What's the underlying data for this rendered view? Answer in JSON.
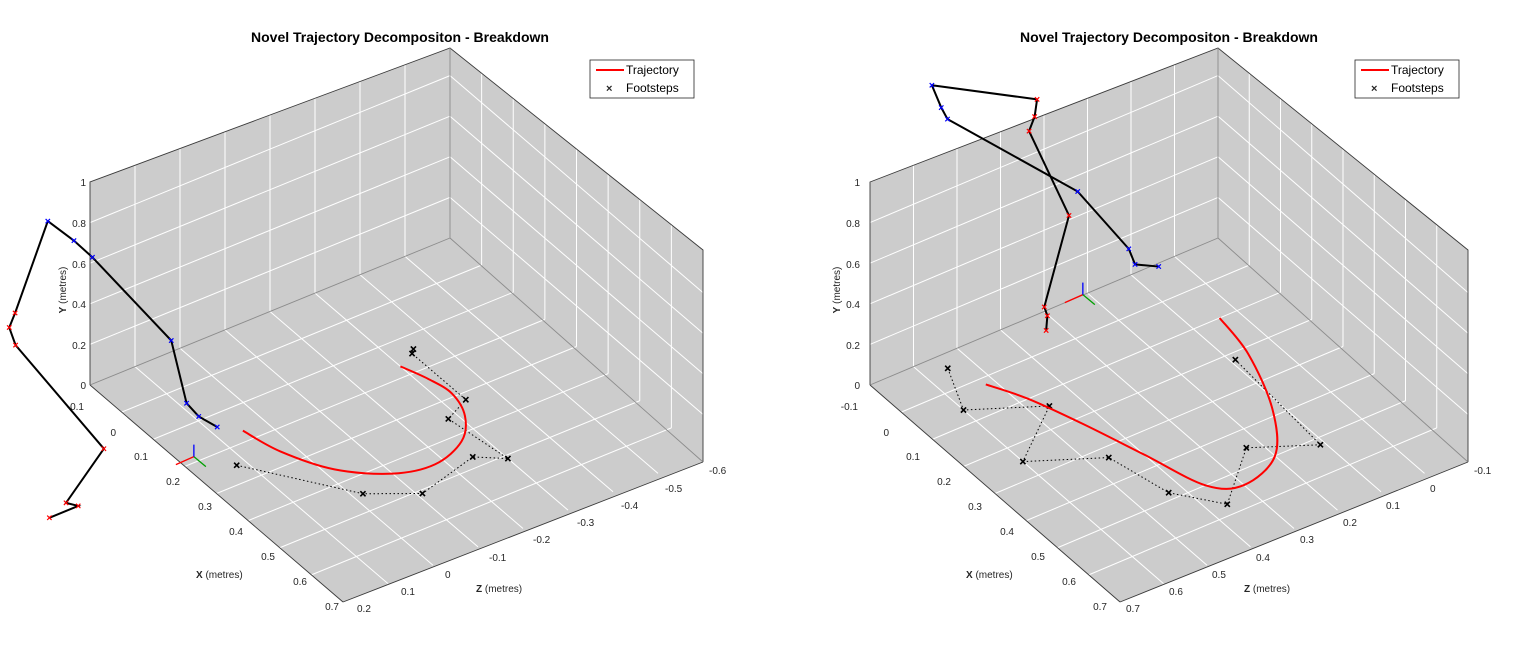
{
  "chart_data": [
    {
      "type": "line",
      "title": "Novel Trajectory Decompositon - Breakdown",
      "axes": {
        "x": {
          "label_bold": "X",
          "label_rest": "(metres)",
          "lim": [
            -0.1,
            0.7
          ],
          "ticks": [
            "-0.1",
            "0",
            "0.1",
            "0.2",
            "0.3",
            "0.4",
            "0.5",
            "0.6",
            "0.7"
          ]
        },
        "z": {
          "label_bold": "Z",
          "label_rest": "(metres)",
          "lim": [
            0.2,
            -0.6
          ],
          "ticks": [
            "0.2",
            "0.1",
            "0",
            "-0.1",
            "-0.2",
            "-0.3",
            "-0.4",
            "-0.5",
            "-0.6"
          ]
        },
        "y": {
          "label_bold": "Y",
          "label_rest": "(metres)",
          "lim": [
            0,
            1
          ],
          "ticks": [
            "0",
            "0.2",
            "0.4",
            "0.6",
            "0.8",
            "1"
          ]
        }
      },
      "grid": true,
      "legend": {
        "placement": "top-right",
        "entries": [
          {
            "name": "Trajectory",
            "marker": "line",
            "color": "#ff0000"
          },
          {
            "name": "Footsteps",
            "marker": "x",
            "color": "#000000"
          }
        ]
      },
      "trajectory": {
        "name": "Trajectory",
        "color": "#ff0000",
        "points": [
          [
            0.17,
            0.05
          ],
          [
            0.26,
            0.03
          ],
          [
            0.36,
            -0.02
          ],
          [
            0.43,
            -0.1
          ],
          [
            0.45,
            -0.18
          ],
          [
            0.42,
            -0.26
          ],
          [
            0.36,
            -0.31
          ],
          [
            0.29,
            -0.33
          ],
          [
            0.23,
            -0.32
          ],
          [
            0.17,
            -0.3
          ]
        ]
      },
      "footsteps": {
        "name": "Footsteps",
        "color": "#000000",
        "points": [
          [
            0.25,
            0.12
          ],
          [
            0.45,
            -0.02
          ],
          [
            0.51,
            -0.11
          ],
          [
            0.47,
            -0.25
          ],
          [
            0.51,
            -0.3
          ],
          [
            0.35,
            -0.28
          ],
          [
            0.32,
            -0.34
          ],
          [
            0.15,
            -0.34
          ],
          [
            0.14,
            -0.35
          ]
        ]
      },
      "skeleton": {
        "left_color": "#ff0000",
        "right_color": "#0000ff",
        "bone_color": "#000000",
        "left": [
          [
            0.09,
            0.5,
            0.88
          ],
          [
            0.1,
            0.52,
            0.84
          ],
          [
            0.12,
            0.52,
            0.78
          ],
          [
            0.2,
            0.38,
            0.25
          ],
          [
            0.18,
            0.45,
            0.02
          ],
          [
            0.19,
            0.43,
            0.0
          ],
          [
            0.17,
            0.48,
            -0.04
          ]
        ],
        "right": [
          [
            -0.02,
            0.35,
            1.05
          ],
          [
            0.02,
            0.32,
            0.98
          ],
          [
            0.05,
            0.3,
            0.92
          ],
          [
            0.1,
            0.16,
            0.45
          ],
          [
            0.12,
            0.14,
            0.15
          ],
          [
            0.13,
            0.12,
            0.08
          ],
          [
            0.16,
            0.1,
            0.05
          ]
        ],
        "top_bar": [
          [
            0.09,
            0.5,
            0.88
          ],
          [
            -0.02,
            0.35,
            1.05
          ]
        ],
        "frame_origin": [
          0.2,
          0.18,
          0.03
        ]
      }
    },
    {
      "type": "line",
      "title": "Novel Trajectory Decompositon - Breakdown",
      "axes": {
        "x": {
          "label_bold": "X",
          "label_rest": "(metres)",
          "lim": [
            -0.1,
            0.7
          ],
          "ticks": [
            "-0.1",
            "0",
            "0.1",
            "0.2",
            "0.3",
            "0.4",
            "0.5",
            "0.6",
            "0.7"
          ]
        },
        "z": {
          "label_bold": "Z",
          "label_rest": "(metres)",
          "lim": [
            0.7,
            -0.1
          ],
          "ticks": [
            "0.7",
            "0.6",
            "0.5",
            "0.4",
            "0.3",
            "0.2",
            "0.1",
            "0",
            "-0.1"
          ]
        },
        "y": {
          "label_bold": "Y",
          "label_rest": "(metres)",
          "lim": [
            0,
            1
          ],
          "ticks": [
            "0",
            "0.2",
            "0.4",
            "0.6",
            "0.8",
            "1"
          ]
        }
      },
      "grid": true,
      "legend": {
        "placement": "top-right",
        "entries": [
          {
            "name": "Trajectory",
            "marker": "line",
            "color": "#ff0000"
          },
          {
            "name": "Footsteps",
            "marker": "x",
            "color": "#000000"
          }
        ]
      },
      "trajectory": {
        "name": "Trajectory",
        "color": "#ff0000",
        "points": [
          [
            0.02,
            0.52
          ],
          [
            0.1,
            0.48
          ],
          [
            0.22,
            0.44
          ],
          [
            0.36,
            0.4
          ],
          [
            0.5,
            0.36
          ],
          [
            0.54,
            0.3
          ],
          [
            0.5,
            0.2
          ],
          [
            0.38,
            0.12
          ],
          [
            0.22,
            0.06
          ],
          [
            0.1,
            0.04
          ]
        ]
      },
      "footsteps": {
        "name": "Footsteps",
        "color": "#000000",
        "points": [
          [
            -0.06,
            0.55
          ],
          [
            0.06,
            0.6
          ],
          [
            0.14,
            0.46
          ],
          [
            0.25,
            0.6
          ],
          [
            0.33,
            0.46
          ],
          [
            0.48,
            0.43
          ],
          [
            0.57,
            0.36
          ],
          [
            0.45,
            0.23
          ],
          [
            0.52,
            0.11
          ],
          [
            0.22,
            0.09
          ]
        ]
      },
      "skeleton": {
        "left_color": "#ff0000",
        "right_color": "#0000ff",
        "bone_color": "#000000",
        "left": [
          [
            -0.15,
            0.28,
            0.96
          ],
          [
            -0.13,
            0.3,
            0.92
          ],
          [
            -0.12,
            0.32,
            0.88
          ],
          [
            -0.02,
            0.3,
            0.58
          ],
          [
            0.04,
            0.4,
            0.3
          ],
          [
            0.05,
            0.4,
            0.27
          ],
          [
            0.06,
            0.41,
            0.22
          ]
        ],
        "right": [
          [
            -0.25,
            0.45,
            1.05
          ],
          [
            -0.22,
            0.45,
            0.98
          ],
          [
            -0.2,
            0.45,
            0.95
          ],
          [
            -0.02,
            0.28,
            0.68
          ],
          [
            0.06,
            0.22,
            0.45
          ],
          [
            0.08,
            0.22,
            0.4
          ],
          [
            0.1,
            0.18,
            0.38
          ]
        ],
        "top_bar": [
          [
            -0.15,
            0.28,
            0.96
          ],
          [
            -0.25,
            0.45,
            1.05
          ]
        ],
        "frame_origin": [
          0.08,
          0.34,
          0.36
        ]
      }
    }
  ]
}
